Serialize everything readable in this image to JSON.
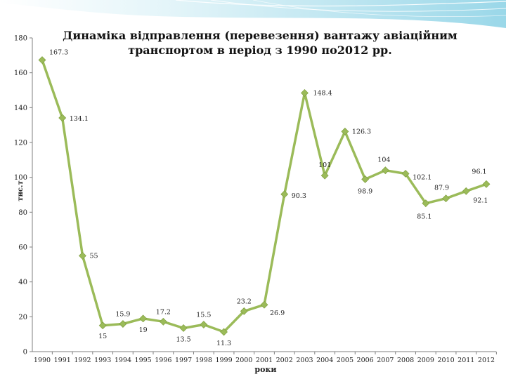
{
  "chart_data": {
    "type": "line",
    "title": "Динаміка відправлення (перевезення) вантажу авіаційним транспортом в період з 1990 по2012 рр.",
    "xlabel": "роки",
    "ylabel": "тис.т",
    "ylim": [
      0,
      180
    ],
    "yticks": [
      0,
      20,
      40,
      60,
      80,
      100,
      120,
      140,
      160,
      180
    ],
    "grid": false,
    "categories": [
      "1990",
      "1991",
      "1992",
      "1993",
      "1994",
      "1995",
      "1996",
      "1997",
      "1998",
      "1999",
      "2000",
      "2001",
      "2002",
      "2003",
      "2004",
      "2005",
      "2006",
      "2007",
      "2008",
      "2009",
      "2010",
      "2011",
      "2012"
    ],
    "series": [
      {
        "values": [
          167.3,
          134.1,
          55,
          15,
          15.9,
          19,
          17.2,
          13.5,
          15.5,
          11.3,
          23.2,
          26.9,
          90.3,
          148.4,
          101,
          126.3,
          98.9,
          104,
          102.1,
          85.1,
          87.9,
          92.1,
          96.1
        ],
        "labels": [
          "167.3",
          "134.1",
          "55",
          "15",
          "15.9",
          "19",
          "17.2",
          "13.5",
          "15.5",
          "11.3",
          "23.2",
          "26.9",
          "90.3",
          "148.4",
          "101",
          "126.3",
          "98.9",
          "104",
          "102.1",
          "85.1",
          "87.9",
          "92.1",
          "96.1"
        ]
      }
    ],
    "color": "#9bbb59"
  }
}
